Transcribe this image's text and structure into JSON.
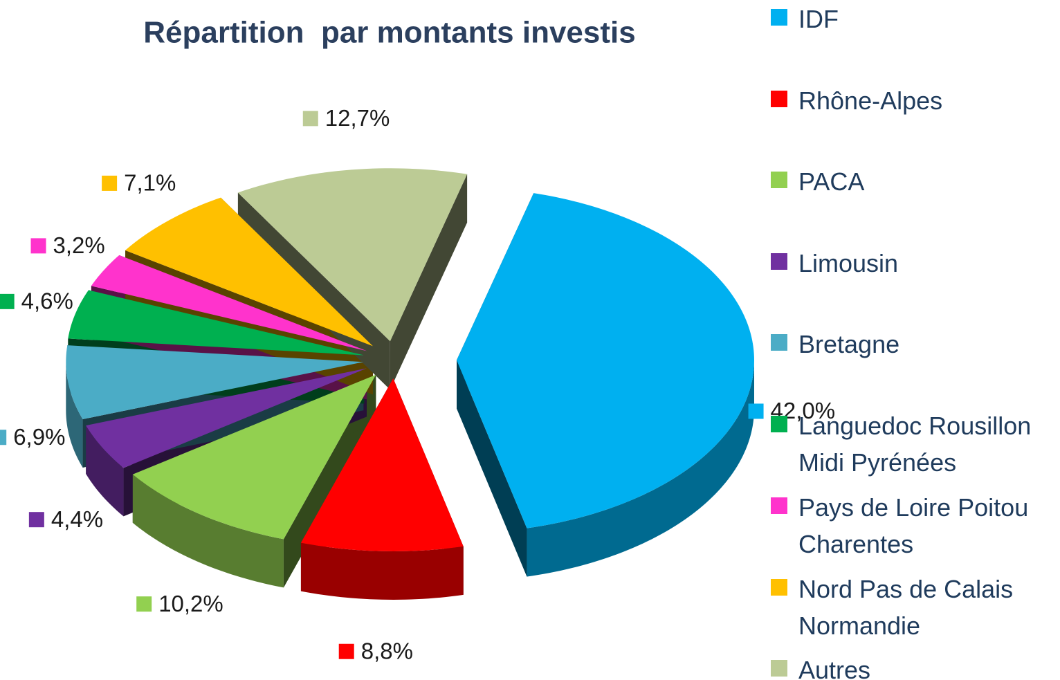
{
  "chart_data": {
    "type": "pie",
    "title": "Répartition  par montants investis",
    "categories": [
      "IDF",
      "Rhône-Alpes",
      "PACA",
      "Limousin",
      "Bretagne",
      "Languedoc Rousillon Midi Pyrénées",
      "Pays de Loire Poitou Charentes",
      "Nord Pas de Calais Normandie",
      "Autres"
    ],
    "values": [
      42.0,
      8.8,
      10.2,
      4.4,
      6.9,
      4.6,
      3.2,
      7.1,
      12.7
    ],
    "value_labels": [
      "42,0%",
      "8,8%",
      "10,2%",
      "4,4%",
      "6,9%",
      "4,6%",
      "3,2%",
      "7,1%",
      "12,7%"
    ],
    "colors": [
      "#00b0f0",
      "#ff0000",
      "#92d050",
      "#7030a0",
      "#4bacc6",
      "#00b050",
      "#ff33cc",
      "#ffc000",
      "#bccb95"
    ],
    "legend": "right"
  }
}
